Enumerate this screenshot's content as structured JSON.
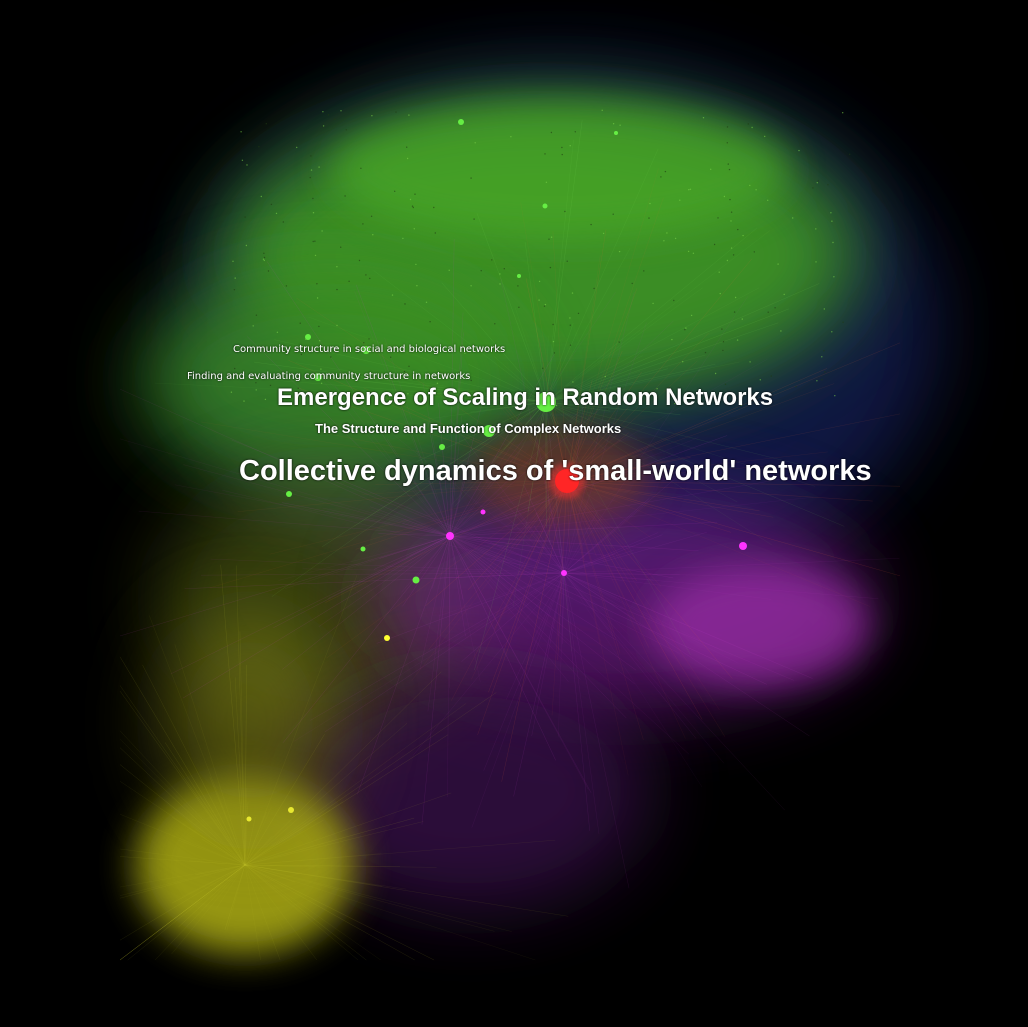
{
  "labels": {
    "small_world": "Collective dynamics of 'small-world' networks",
    "scaling": "Emergence of Scaling in Random Networks",
    "structure_function": "The Structure and Function of Complex Networks",
    "community_social": "Community structure in social and biological networks",
    "community_finding": "Finding and evaluating community structure in networks"
  },
  "colors": {
    "background": "#000000",
    "green_cluster": "#5fd23a",
    "yellow_cluster": "#c8c81e",
    "purple_cluster": "#9b2ea8",
    "blue_cluster": "#3a46b4",
    "hub_node": "#ff1a1a",
    "magenta_node": "#ff33ff"
  }
}
